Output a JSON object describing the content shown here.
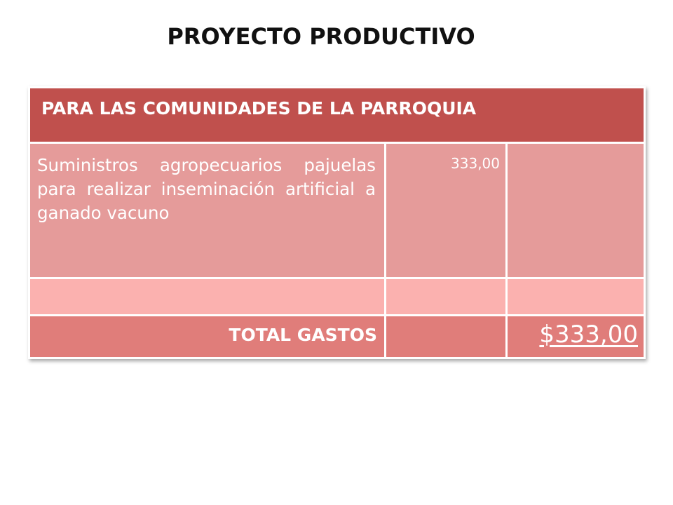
{
  "title": "PROYECTO PRODUCTIVO",
  "table": {
    "header": "PARA LAS COMUNIDADES DE LA PARROQUIA",
    "rows": [
      {
        "description": "Suministros agropecuarios pajuelas para realizar inseminación artificial a ganado vacuno",
        "amount": "333,00",
        "extra": ""
      }
    ],
    "total_label": "TOTAL GASTOS",
    "total_value": "$333,00"
  },
  "colors": {
    "header": "#c0504d",
    "row": "#e59b9a",
    "empty_row": "#fbb1af",
    "total_row": "#e07d7a"
  }
}
